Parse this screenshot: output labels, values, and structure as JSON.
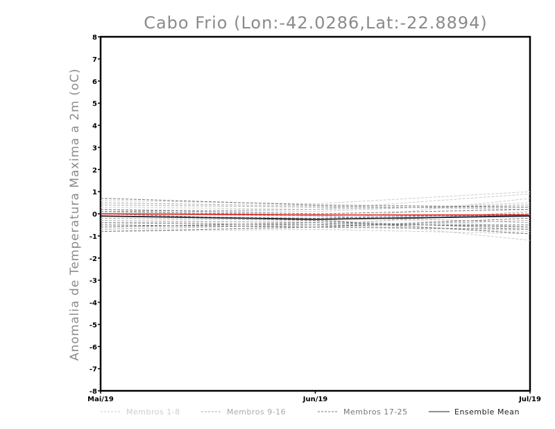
{
  "chart_data": {
    "type": "line",
    "title": "Cabo Frio (Lon:-42.0286,Lat:-22.8894)",
    "ylabel": "Anomalia de Temperatura Maxima a 2m (oC)",
    "xlabel": "",
    "ylim": [
      -8,
      8
    ],
    "yticks": [
      "-8",
      "-7",
      "-6",
      "-5",
      "-4",
      "-3",
      "-2",
      "-1",
      "0",
      "1",
      "2",
      "3",
      "4",
      "5",
      "6",
      "7",
      "8"
    ],
    "categories": [
      "Mai/19",
      "Jun/19",
      "Jul/19"
    ],
    "grid": false,
    "legend_position": "bottom",
    "series_groups": [
      {
        "name": "Membros 1-8",
        "color": "#cccccc",
        "dash": "dashed",
        "members": [
          [
            0.6,
            0.45,
            1.0
          ],
          [
            0.3,
            0.2,
            0.9
          ],
          [
            0.1,
            -0.05,
            -0.6
          ],
          [
            -0.1,
            -0.2,
            -1.2
          ],
          [
            -0.4,
            -0.35,
            0.7
          ],
          [
            -0.6,
            -0.5,
            -0.8
          ],
          [
            0.2,
            0.1,
            0.5
          ],
          [
            -0.8,
            -0.7,
            -0.9
          ]
        ]
      },
      {
        "name": "Membros 9-16",
        "color": "#aaaaaa",
        "dash": "dashed",
        "members": [
          [
            0.4,
            0.3,
            0.3
          ],
          [
            0.0,
            -0.1,
            -0.4
          ],
          [
            -0.3,
            -0.4,
            -0.6
          ],
          [
            -0.7,
            -0.5,
            0.1
          ],
          [
            0.1,
            0.2,
            0.4
          ],
          [
            -0.5,
            -0.6,
            -0.3
          ],
          [
            -0.2,
            -0.3,
            -0.7
          ],
          [
            0.5,
            0.35,
            0.2
          ]
        ]
      },
      {
        "name": "Membros 17-25",
        "color": "#777777",
        "dash": "dashed",
        "members": [
          [
            0.7,
            0.4,
            0.3
          ],
          [
            0.0,
            -0.3,
            -0.9
          ],
          [
            -0.4,
            -0.5,
            -0.5
          ],
          [
            -0.8,
            -0.6,
            -0.2
          ],
          [
            0.2,
            0.0,
            0.2
          ],
          [
            -0.6,
            -0.4,
            -0.6
          ],
          [
            -0.1,
            -0.2,
            0.0
          ],
          [
            0.1,
            -0.05,
            -0.1
          ],
          [
            -0.5,
            -0.6,
            -0.7
          ]
        ]
      }
    ],
    "ensemble_mean": {
      "name": "Ensemble Mean",
      "color": "#222222",
      "values": [
        -0.1,
        -0.25,
        -0.1
      ]
    },
    "red_line": {
      "color": "#e03030",
      "values": [
        0.0,
        -0.05,
        -0.05
      ]
    }
  }
}
